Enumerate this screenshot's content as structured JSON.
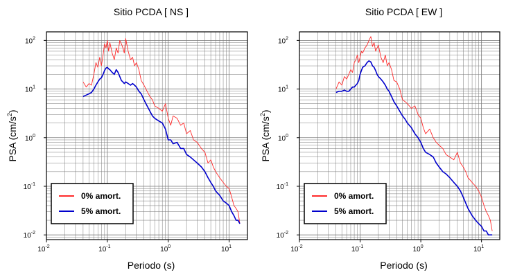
{
  "chart_data": [
    {
      "type": "line",
      "title": "Sitio PCDA [ NS ]",
      "xlabel": "Periodo (s)",
      "ylabel_main": "PSA (cm/s",
      "ylabel_sup": "2",
      "ylabel_close": ")",
      "xscale": "log",
      "yscale": "log",
      "xlim": [
        0.01,
        20
      ],
      "ylim": [
        0.008,
        150
      ],
      "xticks": [
        {
          "base": "10",
          "exp": "-2",
          "value": 0.01
        },
        {
          "base": "10",
          "exp": "-1",
          "value": 0.1
        },
        {
          "base": "10",
          "exp": "0",
          "value": 1
        },
        {
          "base": "10",
          "exp": "1",
          "value": 10
        }
      ],
      "yticks": [
        {
          "base": "10",
          "exp": "-2",
          "value": 0.01
        },
        {
          "base": "10",
          "exp": "-1",
          "value": 0.1
        },
        {
          "base": "10",
          "exp": "0",
          "value": 1
        },
        {
          "base": "10",
          "exp": "1",
          "value": 10
        },
        {
          "base": "10",
          "exp": "2",
          "value": 100
        }
      ],
      "grid": true,
      "legend_position": "bottom-left",
      "series": [
        {
          "name": "0% amort.",
          "color": "#ff2a2a",
          "x": [
            0.04,
            0.045,
            0.05,
            0.055,
            0.06,
            0.065,
            0.07,
            0.075,
            0.08,
            0.085,
            0.09,
            0.095,
            0.1,
            0.105,
            0.11,
            0.12,
            0.13,
            0.14,
            0.15,
            0.16,
            0.17,
            0.18,
            0.19,
            0.2,
            0.22,
            0.24,
            0.26,
            0.28,
            0.3,
            0.33,
            0.36,
            0.4,
            0.45,
            0.5,
            0.55,
            0.6,
            0.7,
            0.8,
            0.9,
            1.0,
            1.1,
            1.2,
            1.4,
            1.6,
            1.8,
            2.0,
            2.3,
            2.6,
            3.0,
            3.5,
            4.0,
            4.5,
            5.0,
            5.5,
            6.0,
            7.0,
            8.0,
            9.0,
            10,
            11,
            12,
            13,
            14,
            15
          ],
          "y": [
            14,
            11,
            13,
            12,
            20,
            35,
            28,
            45,
            30,
            50,
            85,
            70,
            100,
            60,
            90,
            55,
            40,
            70,
            55,
            100,
            85,
            70,
            55,
            110,
            60,
            40,
            45,
            30,
            35,
            25,
            15,
            12,
            9,
            7,
            6,
            4.5,
            4,
            3.5,
            5,
            2.5,
            1.8,
            2.8,
            2.5,
            1.8,
            2,
            1.2,
            1.4,
            0.9,
            0.8,
            0.6,
            0.5,
            0.3,
            0.35,
            0.25,
            0.2,
            0.15,
            0.12,
            0.1,
            0.09,
            0.06,
            0.04,
            0.035,
            0.03,
            0.017
          ]
        },
        {
          "name": "5% amort.",
          "color": "#0000cc",
          "x": [
            0.04,
            0.045,
            0.05,
            0.055,
            0.06,
            0.065,
            0.07,
            0.075,
            0.08,
            0.085,
            0.09,
            0.095,
            0.1,
            0.105,
            0.11,
            0.12,
            0.13,
            0.14,
            0.15,
            0.16,
            0.17,
            0.18,
            0.19,
            0.2,
            0.22,
            0.24,
            0.26,
            0.28,
            0.3,
            0.33,
            0.36,
            0.4,
            0.45,
            0.5,
            0.55,
            0.6,
            0.7,
            0.8,
            0.9,
            1.0,
            1.1,
            1.2,
            1.4,
            1.6,
            1.8,
            2.0,
            2.3,
            2.6,
            3.0,
            3.5,
            4.0,
            4.5,
            5.0,
            5.5,
            6.0,
            7.0,
            8.0,
            9.0,
            10,
            11,
            12,
            13,
            14,
            15
          ],
          "y": [
            7,
            7.5,
            8,
            8.5,
            10,
            12,
            14,
            16,
            17,
            20,
            24,
            27,
            28,
            26,
            25,
            22,
            20,
            25,
            22,
            18,
            15,
            14,
            13,
            14,
            13,
            12,
            13,
            12,
            11,
            9,
            8,
            6,
            4.5,
            3.5,
            2.8,
            2.5,
            2.2,
            2,
            1.5,
            0.9,
            0.9,
            0.75,
            0.8,
            0.6,
            0.6,
            0.45,
            0.4,
            0.35,
            0.3,
            0.25,
            0.2,
            0.15,
            0.12,
            0.1,
            0.08,
            0.065,
            0.05,
            0.045,
            0.04,
            0.03,
            0.025,
            0.02,
            0.02,
            0.017
          ]
        }
      ]
    },
    {
      "type": "line",
      "title": "Sitio PCDA [ EW ]",
      "xlabel": "Periodo (s)",
      "ylabel_main": "PSA (cm/s",
      "ylabel_sup": "2",
      "ylabel_close": ")",
      "xscale": "log",
      "yscale": "log",
      "xlim": [
        0.01,
        20
      ],
      "ylim": [
        0.008,
        150
      ],
      "xticks": [
        {
          "base": "10",
          "exp": "-2",
          "value": 0.01
        },
        {
          "base": "10",
          "exp": "-1",
          "value": 0.1
        },
        {
          "base": "10",
          "exp": "0",
          "value": 1
        },
        {
          "base": "10",
          "exp": "1",
          "value": 10
        }
      ],
      "yticks": [
        {
          "base": "10",
          "exp": "-2",
          "value": 0.01
        },
        {
          "base": "10",
          "exp": "-1",
          "value": 0.1
        },
        {
          "base": "10",
          "exp": "0",
          "value": 1
        },
        {
          "base": "10",
          "exp": "1",
          "value": 10
        },
        {
          "base": "10",
          "exp": "2",
          "value": 100
        }
      ],
      "grid": true,
      "legend_position": "bottom-left",
      "series": [
        {
          "name": "0% amort.",
          "color": "#ff2a2a",
          "x": [
            0.04,
            0.045,
            0.05,
            0.055,
            0.06,
            0.065,
            0.07,
            0.075,
            0.08,
            0.085,
            0.09,
            0.095,
            0.1,
            0.105,
            0.11,
            0.12,
            0.13,
            0.14,
            0.15,
            0.16,
            0.17,
            0.18,
            0.19,
            0.2,
            0.22,
            0.24,
            0.26,
            0.28,
            0.3,
            0.33,
            0.36,
            0.4,
            0.45,
            0.5,
            0.55,
            0.6,
            0.7,
            0.8,
            0.9,
            1.0,
            1.1,
            1.2,
            1.4,
            1.6,
            1.8,
            2.0,
            2.3,
            2.6,
            3.0,
            3.5,
            4.0,
            4.5,
            5.0,
            5.5,
            6.0,
            7.0,
            8.0,
            9.0,
            10,
            11,
            12,
            13,
            14,
            15
          ],
          "y": [
            10,
            14,
            12,
            18,
            16,
            20,
            25,
            22,
            35,
            40,
            50,
            35,
            45,
            60,
            55,
            70,
            80,
            100,
            120,
            75,
            90,
            60,
            70,
            80,
            45,
            35,
            50,
            30,
            35,
            25,
            15,
            14,
            10,
            6,
            5.5,
            5,
            4,
            4.5,
            3,
            2.5,
            1.6,
            1.2,
            1.5,
            1,
            0.8,
            0.7,
            0.6,
            0.45,
            0.4,
            0.35,
            0.5,
            0.3,
            0.25,
            0.2,
            0.15,
            0.12,
            0.1,
            0.08,
            0.06,
            0.04,
            0.03,
            0.025,
            0.02,
            0.012
          ]
        },
        {
          "name": "5% amort.",
          "color": "#0000cc",
          "x": [
            0.04,
            0.045,
            0.05,
            0.055,
            0.06,
            0.065,
            0.07,
            0.075,
            0.08,
            0.085,
            0.09,
            0.095,
            0.1,
            0.105,
            0.11,
            0.12,
            0.13,
            0.14,
            0.15,
            0.16,
            0.17,
            0.18,
            0.19,
            0.2,
            0.22,
            0.24,
            0.26,
            0.28,
            0.3,
            0.33,
            0.36,
            0.4,
            0.45,
            0.5,
            0.55,
            0.6,
            0.7,
            0.8,
            0.9,
            1.0,
            1.1,
            1.2,
            1.4,
            1.6,
            1.8,
            2.0,
            2.3,
            2.6,
            3.0,
            3.5,
            4.0,
            4.5,
            5.0,
            5.5,
            6.0,
            7.0,
            8.0,
            9.0,
            10,
            11,
            12,
            13,
            14,
            15
          ],
          "y": [
            8.5,
            9,
            9,
            9.5,
            9,
            9,
            10,
            11,
            11,
            12,
            13,
            15,
            20,
            24,
            28,
            30,
            35,
            38,
            36,
            30,
            28,
            24,
            20,
            18,
            16,
            14,
            12,
            10,
            9,
            7,
            5.5,
            4.5,
            3.5,
            2.8,
            2.4,
            2,
            1.6,
            1.2,
            1,
            0.8,
            0.6,
            0.5,
            0.45,
            0.4,
            0.3,
            0.25,
            0.2,
            0.18,
            0.15,
            0.12,
            0.1,
            0.08,
            0.06,
            0.045,
            0.035,
            0.025,
            0.02,
            0.017,
            0.015,
            0.012,
            0.012,
            0.01,
            0.01,
            0.01
          ]
        }
      ]
    }
  ]
}
